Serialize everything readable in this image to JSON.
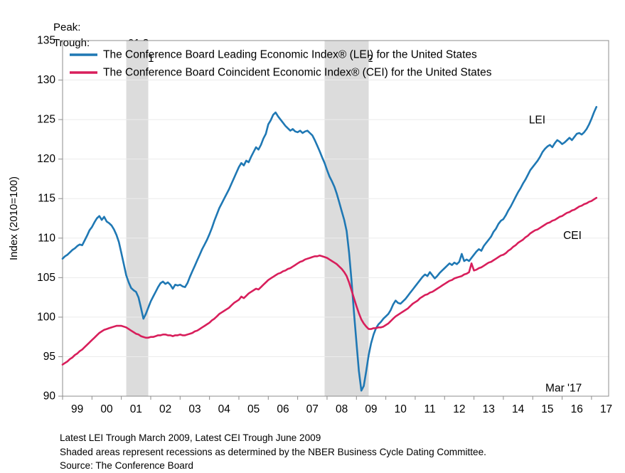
{
  "header": {
    "peak_label": "Peak:",
    "trough_label": "Trough:",
    "recessions": [
      {
        "peak": "01:3",
        "trough": "01:11"
      },
      {
        "peak": "07:12",
        "trough": "09:6"
      }
    ]
  },
  "colors": {
    "lei_blue": "#1f78b4",
    "cei_crimson": "#d81e5b",
    "recession_band": "#dcdcdc",
    "gridline": "#ebebeb",
    "axis_border": "#8c8c8c",
    "text": "#000000"
  },
  "chart_data": {
    "type": "line",
    "ylabel": "Index (2010=100)",
    "ylim": [
      90,
      135
    ],
    "ytick_step": 5,
    "y_tick_labels": [
      "90",
      "95",
      "100",
      "105",
      "110",
      "115",
      "120",
      "125",
      "130",
      "135"
    ],
    "x_domain": [
      1999,
      2017.583
    ],
    "x_tick_years": [
      1999,
      2000,
      2001,
      2002,
      2003,
      2004,
      2005,
      2006,
      2007,
      2008,
      2009,
      2010,
      2011,
      2012,
      2013,
      2014,
      2015,
      2016,
      2017
    ],
    "x_tick_labels": [
      "99",
      "00",
      "01",
      "02",
      "03",
      "04",
      "05",
      "06",
      "07",
      "08",
      "09",
      "10",
      "11",
      "12",
      "13",
      "14",
      "15",
      "16",
      "17"
    ],
    "grid": true,
    "legend_position": "top-left-inside",
    "recession_bands": [
      {
        "from": 2001.167,
        "to": 2001.917
      },
      {
        "from": 2007.917,
        "to": 2009.417
      }
    ],
    "series": [
      {
        "name": "LEI",
        "legend": "The Conference Board Leading Economic Index® (LEI) for the United States",
        "color_key": "lei_blue",
        "start_year": 1999,
        "frequency": "monthly",
        "values": [
          107.4,
          107.7,
          107.9,
          108.2,
          108.5,
          108.7,
          109.0,
          109.2,
          109.1,
          109.7,
          110.3,
          111.0,
          111.4,
          112.0,
          112.5,
          112.8,
          112.3,
          112.7,
          112.1,
          111.9,
          111.6,
          111.1,
          110.4,
          109.5,
          108.1,
          106.7,
          105.3,
          104.4,
          103.7,
          103.4,
          103.2,
          102.5,
          101.2,
          99.8,
          100.4,
          101.2,
          102.0,
          102.6,
          103.2,
          103.8,
          104.3,
          104.5,
          104.2,
          104.4,
          104.1,
          103.6,
          104.1,
          104.0,
          104.1,
          103.9,
          103.8,
          104.3,
          105.1,
          105.8,
          106.5,
          107.2,
          107.9,
          108.6,
          109.2,
          109.8,
          110.5,
          111.3,
          112.2,
          113.0,
          113.8,
          114.4,
          115.0,
          115.6,
          116.2,
          116.9,
          117.6,
          118.3,
          119.0,
          119.5,
          119.2,
          119.8,
          119.6,
          120.3,
          120.9,
          121.5,
          121.2,
          121.8,
          122.6,
          123.2,
          124.4,
          124.9,
          125.6,
          125.9,
          125.4,
          125.0,
          124.6,
          124.2,
          123.9,
          123.6,
          123.8,
          123.5,
          123.4,
          123.6,
          123.3,
          123.5,
          123.6,
          123.3,
          123.0,
          122.4,
          121.7,
          121.0,
          120.2,
          119.5,
          118.6,
          117.8,
          117.2,
          116.5,
          115.6,
          114.5,
          113.4,
          112.3,
          110.9,
          108.2,
          104.6,
          100.6,
          96.8,
          93.2,
          90.7,
          91.3,
          93.2,
          95.2,
          96.7,
          97.8,
          98.6,
          99.1,
          99.4,
          99.8,
          100.1,
          100.4,
          100.9,
          101.6,
          102.1,
          101.8,
          101.7,
          102.0,
          102.3,
          102.7,
          103.1,
          103.5,
          103.9,
          104.3,
          104.7,
          105.1,
          105.4,
          105.2,
          105.7,
          105.3,
          104.9,
          105.2,
          105.6,
          105.9,
          106.2,
          106.5,
          106.8,
          106.6,
          106.9,
          106.7,
          107.0,
          108.0,
          107.1,
          107.3,
          107.1,
          107.5,
          107.9,
          108.3,
          108.6,
          108.4,
          109.0,
          109.4,
          109.8,
          110.2,
          110.8,
          111.2,
          111.8,
          112.2,
          112.4,
          112.9,
          113.5,
          114.0,
          114.6,
          115.2,
          115.8,
          116.3,
          116.9,
          117.4,
          118.0,
          118.6,
          119.0,
          119.4,
          119.8,
          120.3,
          120.9,
          121.3,
          121.6,
          121.8,
          121.5,
          122.0,
          122.4,
          122.2,
          121.9,
          122.1,
          122.4,
          122.7,
          122.4,
          122.8,
          123.2,
          123.3,
          123.1,
          123.4,
          123.8,
          124.4,
          125.1,
          125.9,
          126.6
        ]
      },
      {
        "name": "CEI",
        "legend": "The Conference Board Coincident Economic Index® (CEI) for the United States",
        "color_key": "cei_crimson",
        "start_year": 1999,
        "frequency": "monthly",
        "values": [
          94.0,
          94.2,
          94.4,
          94.7,
          94.9,
          95.2,
          95.4,
          95.7,
          95.9,
          96.2,
          96.5,
          96.8,
          97.1,
          97.4,
          97.7,
          98.0,
          98.2,
          98.4,
          98.5,
          98.6,
          98.7,
          98.8,
          98.9,
          98.9,
          98.9,
          98.8,
          98.7,
          98.5,
          98.3,
          98.1,
          97.9,
          97.8,
          97.6,
          97.5,
          97.4,
          97.4,
          97.5,
          97.5,
          97.6,
          97.7,
          97.7,
          97.8,
          97.8,
          97.7,
          97.7,
          97.6,
          97.7,
          97.7,
          97.8,
          97.7,
          97.7,
          97.8,
          97.9,
          98.0,
          98.2,
          98.3,
          98.5,
          98.7,
          98.9,
          99.1,
          99.3,
          99.6,
          99.8,
          100.1,
          100.4,
          100.6,
          100.8,
          101.0,
          101.2,
          101.5,
          101.8,
          102.0,
          102.2,
          102.6,
          102.4,
          102.7,
          103.0,
          103.2,
          103.4,
          103.6,
          103.5,
          103.8,
          104.1,
          104.4,
          104.7,
          104.9,
          105.1,
          105.3,
          105.5,
          105.6,
          105.8,
          105.9,
          106.1,
          106.2,
          106.4,
          106.6,
          106.8,
          107.0,
          107.1,
          107.3,
          107.4,
          107.5,
          107.6,
          107.7,
          107.7,
          107.8,
          107.7,
          107.6,
          107.5,
          107.3,
          107.1,
          106.9,
          106.7,
          106.4,
          106.1,
          105.7,
          105.2,
          104.4,
          103.4,
          102.4,
          101.4,
          100.5,
          99.7,
          99.2,
          98.8,
          98.5,
          98.5,
          98.6,
          98.6,
          98.7,
          98.7,
          98.8,
          99.0,
          99.2,
          99.5,
          99.8,
          100.1,
          100.3,
          100.5,
          100.7,
          100.9,
          101.1,
          101.4,
          101.7,
          101.9,
          102.1,
          102.4,
          102.6,
          102.8,
          102.9,
          103.1,
          103.2,
          103.4,
          103.6,
          103.8,
          104.0,
          104.2,
          104.4,
          104.6,
          104.7,
          104.9,
          105.0,
          105.1,
          105.2,
          105.4,
          105.5,
          105.7,
          106.8,
          105.9,
          106.0,
          106.2,
          106.3,
          106.5,
          106.7,
          106.9,
          107.0,
          107.2,
          107.4,
          107.6,
          107.8,
          107.9,
          108.1,
          108.4,
          108.6,
          108.9,
          109.1,
          109.4,
          109.6,
          109.8,
          110.1,
          110.3,
          110.6,
          110.8,
          111.0,
          111.1,
          111.3,
          111.5,
          111.7,
          111.9,
          112.0,
          112.2,
          112.3,
          112.5,
          112.7,
          112.8,
          113.0,
          113.2,
          113.3,
          113.5,
          113.6,
          113.8,
          114.0,
          114.1,
          114.3,
          114.4,
          114.6,
          114.7,
          114.9,
          115.1
        ]
      }
    ],
    "annotations": [
      {
        "id": "lei-label",
        "text": "LEI",
        "x": 2015.15,
        "y": 124.9
      },
      {
        "id": "cei-label",
        "text": "CEI",
        "x": 2016.35,
        "y": 110.3
      },
      {
        "id": "latest-point",
        "text": "Mar '17",
        "x": 2016.05,
        "y": 91.0
      }
    ]
  },
  "footer": {
    "lines": [
      "Latest LEI Trough March 2009, Latest CEI Trough June 2009",
      "Shaded areas represent recessions as determined by the NBER Business Cycle Dating Committee.",
      "Source: The Conference Board"
    ]
  }
}
